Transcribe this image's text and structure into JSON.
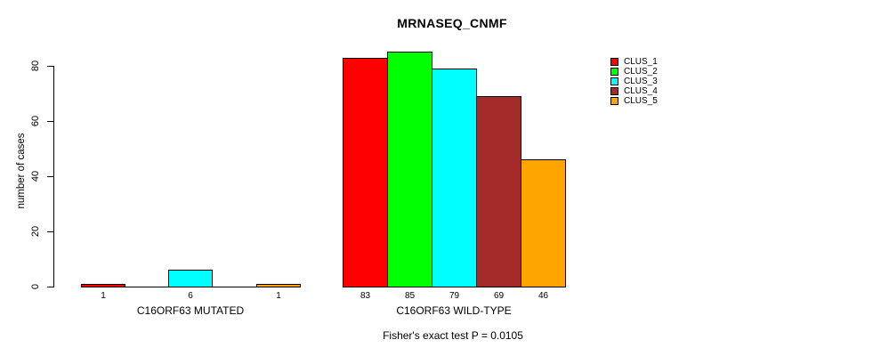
{
  "title": "MRNASEQ_CNMF",
  "y_axis": {
    "label": "number of cases",
    "ticks": [
      0,
      20,
      40,
      60,
      80
    ]
  },
  "legend": {
    "items": [
      "CLUS_1",
      "CLUS_2",
      "CLUS_3",
      "CLUS_4",
      "CLUS_5"
    ]
  },
  "annotation": "Fisher's exact test P = 0.0105",
  "chart_data": {
    "type": "bar",
    "title": "MRNASEQ_CNMF",
    "xlabel": "",
    "ylabel": "number of cases",
    "yticks": [
      0,
      20,
      40,
      60,
      80
    ],
    "ylim": [
      0,
      85
    ],
    "grid": false,
    "legend_position": "top-right",
    "categories": [
      "C16ORF63 MUTATED",
      "C16ORF63 WILD-TYPE"
    ],
    "series": [
      {
        "name": "CLUS_1",
        "color": "#ff0000",
        "values": [
          1,
          83
        ]
      },
      {
        "name": "CLUS_2",
        "color": "#00ff00",
        "values": [
          0,
          85
        ]
      },
      {
        "name": "CLUS_3",
        "color": "#00ffff",
        "values": [
          6,
          79
        ]
      },
      {
        "name": "CLUS_4",
        "color": "#a52a2a",
        "values": [
          0,
          69
        ]
      },
      {
        "name": "CLUS_5",
        "color": "#ffa500",
        "values": [
          1,
          46
        ]
      }
    ],
    "bar_value_labels": {
      "C16ORF63 MUTATED": [
        1,
        6,
        1
      ],
      "C16ORF63 WILD-TYPE": [
        83,
        85,
        79,
        69,
        46
      ]
    },
    "annotation": "Fisher's exact test P = 0.0105"
  }
}
